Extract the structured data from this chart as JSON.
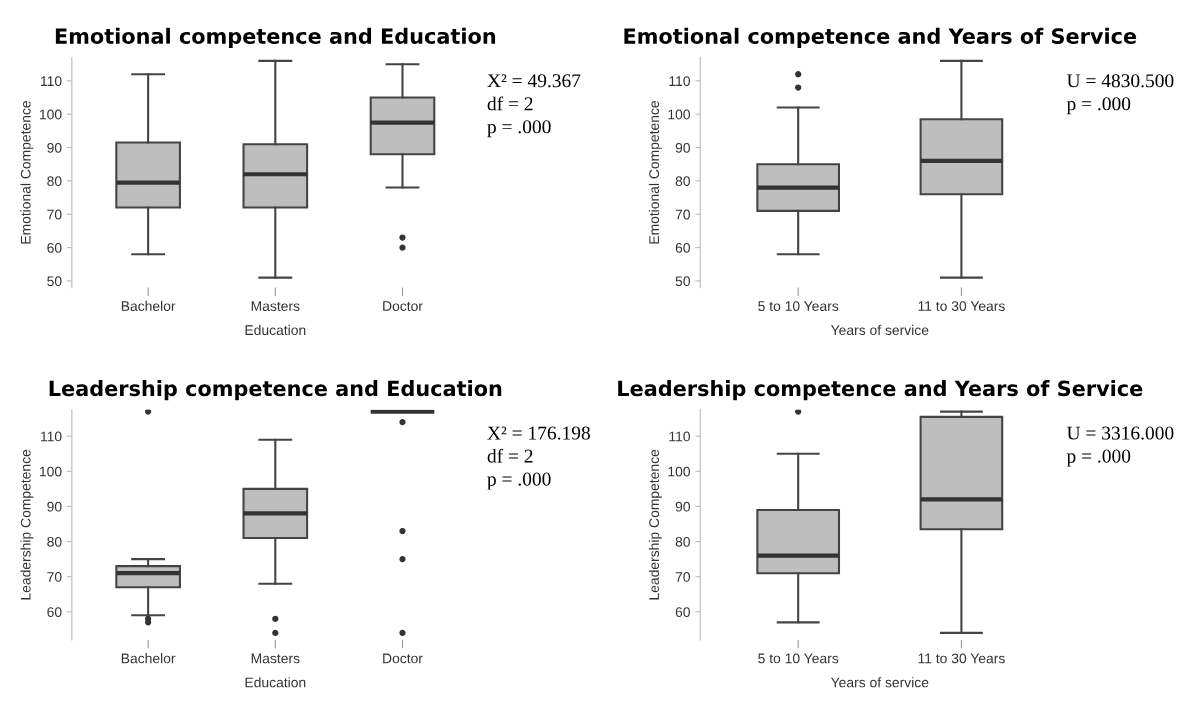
{
  "chart_data": [
    {
      "type": "box",
      "title": "Emotional competence and Education",
      "xlabel": "Education",
      "ylabel": "Emotional Competence",
      "categories": [
        "Bachelor",
        "Masters",
        "Doctor"
      ],
      "ylim": [
        48,
        117
      ],
      "yticks": [
        50,
        60,
        70,
        80,
        90,
        100,
        110
      ],
      "annotations": [
        "X² = 49.367",
        "df = 2",
        "p = .000"
      ],
      "series": [
        {
          "color": "#bebebe",
          "boxes": [
            {
              "low": 58,
              "q1": 72,
              "median": 79.5,
              "q3": 91.5,
              "high": 112
            },
            {
              "low": 51,
              "q1": 72,
              "median": 82,
              "q3": 91,
              "high": 116
            },
            {
              "low": 78,
              "q1": 88,
              "median": 97.5,
              "q3": 105,
              "high": 115,
              "outliers": [
                60,
                63
              ]
            }
          ]
        }
      ]
    },
    {
      "type": "box",
      "title": "Emotional competence and Years of Service",
      "xlabel": "Years of service",
      "ylabel": "Emotional Competence",
      "categories": [
        "5 to 10 Years",
        "11 to 30 Years"
      ],
      "ylim": [
        48,
        117
      ],
      "yticks": [
        50,
        60,
        70,
        80,
        90,
        100,
        110
      ],
      "annotations": [
        "U = 4830.500",
        "p = .000"
      ],
      "series": [
        {
          "color": "#bebebe",
          "boxes": [
            {
              "low": 58,
              "q1": 71,
              "median": 78,
              "q3": 85,
              "high": 102,
              "outliers": [
                108,
                112
              ]
            },
            {
              "low": 51,
              "q1": 76,
              "median": 86,
              "q3": 98.5,
              "high": 116
            }
          ]
        }
      ]
    },
    {
      "type": "box",
      "title": "Leadership competence and Education",
      "xlabel": "Education",
      "ylabel": "Leadership Competence",
      "categories": [
        "Bachelor",
        "Masters",
        "Doctor"
      ],
      "ylim": [
        52,
        117.5
      ],
      "yticks": [
        60,
        70,
        80,
        90,
        100,
        110
      ],
      "annotations": [
        "X² = 176.198",
        "df = 2",
        "p = .000"
      ],
      "series": [
        {
          "color": "#bebebe",
          "boxes": [
            {
              "low": 59,
              "q1": 67,
              "median": 71,
              "q3": 73,
              "high": 75,
              "outliers": [
                57,
                58,
                117
              ]
            },
            {
              "low": 68,
              "q1": 81,
              "median": 88,
              "q3": 95,
              "high": 109,
              "outliers": [
                54,
                58
              ]
            },
            {
              "low": 117,
              "q1": 117,
              "median": 117,
              "q3": 117,
              "high": 117,
              "outliers": [
                54,
                75,
                83,
                114
              ]
            }
          ]
        }
      ]
    },
    {
      "type": "box",
      "title": "Leadership competence and Years of Service",
      "xlabel": "Years of service",
      "ylabel": "Leadership Competence",
      "categories": [
        "5 to 10 Years",
        "11 to 30 Years"
      ],
      "ylim": [
        52,
        117.5
      ],
      "yticks": [
        60,
        70,
        80,
        90,
        100,
        110
      ],
      "annotations": [
        "U = 3316.000",
        "p = .000"
      ],
      "series": [
        {
          "color": "#bebebe",
          "boxes": [
            {
              "low": 57,
              "q1": 71,
              "median": 76,
              "q3": 89,
              "high": 105,
              "outliers": [
                117
              ]
            },
            {
              "low": 54,
              "q1": 83.5,
              "median": 92,
              "q3": 115.5,
              "high": 117
            }
          ]
        }
      ]
    }
  ]
}
